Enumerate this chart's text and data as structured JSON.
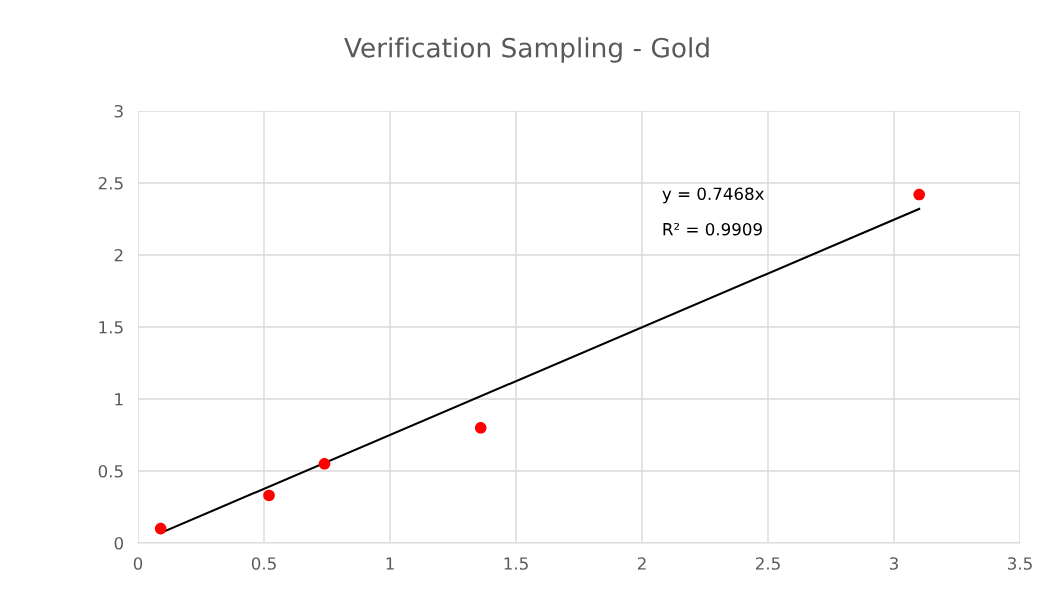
{
  "chart_data": {
    "type": "scatter",
    "title": "Verification Sampling - Gold",
    "series": [
      {
        "color": "#ff0000",
        "x": [
          0.09,
          0.52,
          0.74,
          1.36,
          3.1
        ],
        "values": [
          0.1,
          0.33,
          0.55,
          0.8,
          2.42
        ],
        "marker": "circle"
      },
      {
        "type": "line",
        "color": "#000000",
        "x": [
          0.09,
          3.1
        ],
        "values": [
          0.07,
          2.32
        ],
        "marker": "none",
        "line_style": "solid"
      }
    ],
    "annotations": [
      "y = 0.7468x",
      "R² = 0.9909"
    ],
    "xlim": [
      0,
      3.5
    ],
    "xticks": [
      0,
      0.5,
      1,
      1.5,
      2,
      2.5,
      3,
      3.5
    ],
    "ylim": [
      0,
      3
    ],
    "yticks": [
      0,
      0.5,
      1,
      1.5,
      2,
      2.5,
      3
    ],
    "grid": true,
    "legend": false
  }
}
